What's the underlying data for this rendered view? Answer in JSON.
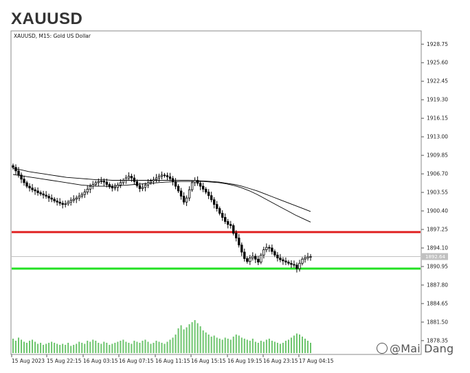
{
  "page": {
    "title": "XAUUSD"
  },
  "chart_header": "XAUUSD, M15:  Gold US Dollar",
  "watermark": "@Mai Dang",
  "current_price_label": "1892.64",
  "colors": {
    "resistance_line": "#e02020",
    "support_line": "#22e022",
    "candle": "#000000",
    "volume": "#6cc46c",
    "ma": "#000000",
    "current_price_line": "#c0c0c0",
    "price_tag_bg": "#c0c0c0"
  },
  "chart_data": {
    "type": "candlestick",
    "title": "XAUUSD, M15:  Gold US Dollar",
    "symbol": "XAUUSD",
    "timeframe": "M15",
    "ylim": [
      1876.0,
      1931.0
    ],
    "y_ticks": [
      "1928.75",
      "1925.60",
      "1922.45",
      "1919.30",
      "1916.15",
      "1913.00",
      "1909.85",
      "1906.70",
      "1903.55",
      "1900.40",
      "1897.25",
      "1894.10",
      "1890.95",
      "1887.80",
      "1884.65",
      "1881.50",
      "1878.35"
    ],
    "x_ticks": [
      "15 Aug 2023",
      "15 Aug 22:15",
      "16 Aug 03:15",
      "16 Aug 07:15",
      "16 Aug 11:15",
      "16 Aug 15:15",
      "16 Aug 19:15",
      "16 Aug 23:15",
      "17 Aug 04:15"
    ],
    "horizontal_levels": [
      {
        "name": "resistance",
        "price": 1896.8
      },
      {
        "name": "support",
        "price": 1890.6
      }
    ],
    "current_price": 1892.64,
    "close_prices": [
      1907.8,
      1907.2,
      1906.5,
      1905.8,
      1905.2,
      1904.6,
      1904.3,
      1904.0,
      1903.8,
      1903.5,
      1903.3,
      1903.1,
      1902.9,
      1902.6,
      1902.4,
      1902.1,
      1901.9,
      1901.7,
      1901.5,
      1901.6,
      1901.9,
      1902.2,
      1902.4,
      1902.6,
      1902.9,
      1903.2,
      1903.6,
      1904.1,
      1904.6,
      1904.9,
      1905.2,
      1905.4,
      1905.5,
      1905.3,
      1904.9,
      1904.5,
      1904.3,
      1904.4,
      1904.8,
      1905.2,
      1905.6,
      1906.0,
      1906.3,
      1906.0,
      1905.4,
      1904.7,
      1904.2,
      1904.4,
      1904.8,
      1905.2,
      1905.5,
      1905.7,
      1906.0,
      1906.3,
      1906.5,
      1906.4,
      1906.2,
      1905.9,
      1905.4,
      1904.6,
      1903.8,
      1902.9,
      1901.9,
      1902.6,
      1904.0,
      1905.2,
      1905.6,
      1905.1,
      1904.6,
      1904.1,
      1903.6,
      1903.0,
      1902.3,
      1901.5,
      1900.8,
      1900.0,
      1899.3,
      1898.6,
      1898.1,
      1897.9,
      1896.6,
      1895.8,
      1894.6,
      1893.4,
      1892.3,
      1891.8,
      1892.4,
      1892.7,
      1892.2,
      1891.7,
      1892.9,
      1893.8,
      1894.2,
      1894.1,
      1893.5,
      1892.9,
      1892.4,
      1892.1,
      1891.9,
      1891.7,
      1891.5,
      1891.3,
      1891.2,
      1890.6,
      1891.5,
      1892.2,
      1892.4,
      1892.6,
      1892.64
    ],
    "volume": [
      14,
      12,
      15,
      13,
      11,
      10,
      12,
      13,
      11,
      9,
      10,
      8,
      9,
      10,
      11,
      10,
      9,
      8,
      9,
      8,
      10,
      7,
      8,
      9,
      11,
      10,
      9,
      12,
      11,
      13,
      12,
      10,
      9,
      11,
      10,
      8,
      9,
      10,
      11,
      12,
      13,
      11,
      10,
      9,
      12,
      11,
      10,
      12,
      13,
      11,
      9,
      10,
      12,
      11,
      10,
      9,
      11,
      13,
      15,
      18,
      24,
      27,
      23,
      25,
      28,
      30,
      32,
      29,
      26,
      22,
      20,
      18,
      16,
      17,
      15,
      14,
      13,
      15,
      14,
      13,
      16,
      18,
      17,
      15,
      14,
      13,
      12,
      14,
      11,
      10,
      12,
      11,
      13,
      14,
      12,
      11,
      10,
      9,
      10,
      12,
      13,
      15,
      17,
      19,
      18,
      16,
      14,
      12,
      10
    ],
    "ma_fast": [
      1906.6,
      1906.4,
      1906.2,
      1906.0,
      1905.8,
      1905.6,
      1905.4,
      1905.2,
      1905.0,
      1904.8,
      1904.7,
      1904.6,
      1904.6,
      1904.6,
      1904.7,
      1904.8,
      1904.9,
      1905.0,
      1905.1,
      1905.2,
      1905.3,
      1905.35,
      1905.4,
      1905.4,
      1905.4,
      1905.4,
      1905.3,
      1905.2,
      1905.0,
      1904.7,
      1904.3,
      1903.8,
      1903.2,
      1902.5,
      1901.8,
      1901.1,
      1900.4,
      1899.7,
      1899.1,
      1898.5
    ],
    "ma_slow": [
      1907.6,
      1907.4,
      1907.1,
      1906.9,
      1906.7,
      1906.5,
      1906.3,
      1906.1,
      1906.0,
      1905.9,
      1905.8,
      1905.7,
      1905.7,
      1905.6,
      1905.6,
      1905.6,
      1905.6,
      1905.6,
      1905.6,
      1905.6,
      1905.6,
      1905.6,
      1905.6,
      1905.6,
      1905.55,
      1905.5,
      1905.4,
      1905.3,
      1905.1,
      1904.9,
      1904.6,
      1904.2,
      1903.8,
      1903.3,
      1902.8,
      1902.3,
      1901.8,
      1901.3,
      1900.8,
      1900.3
    ]
  }
}
